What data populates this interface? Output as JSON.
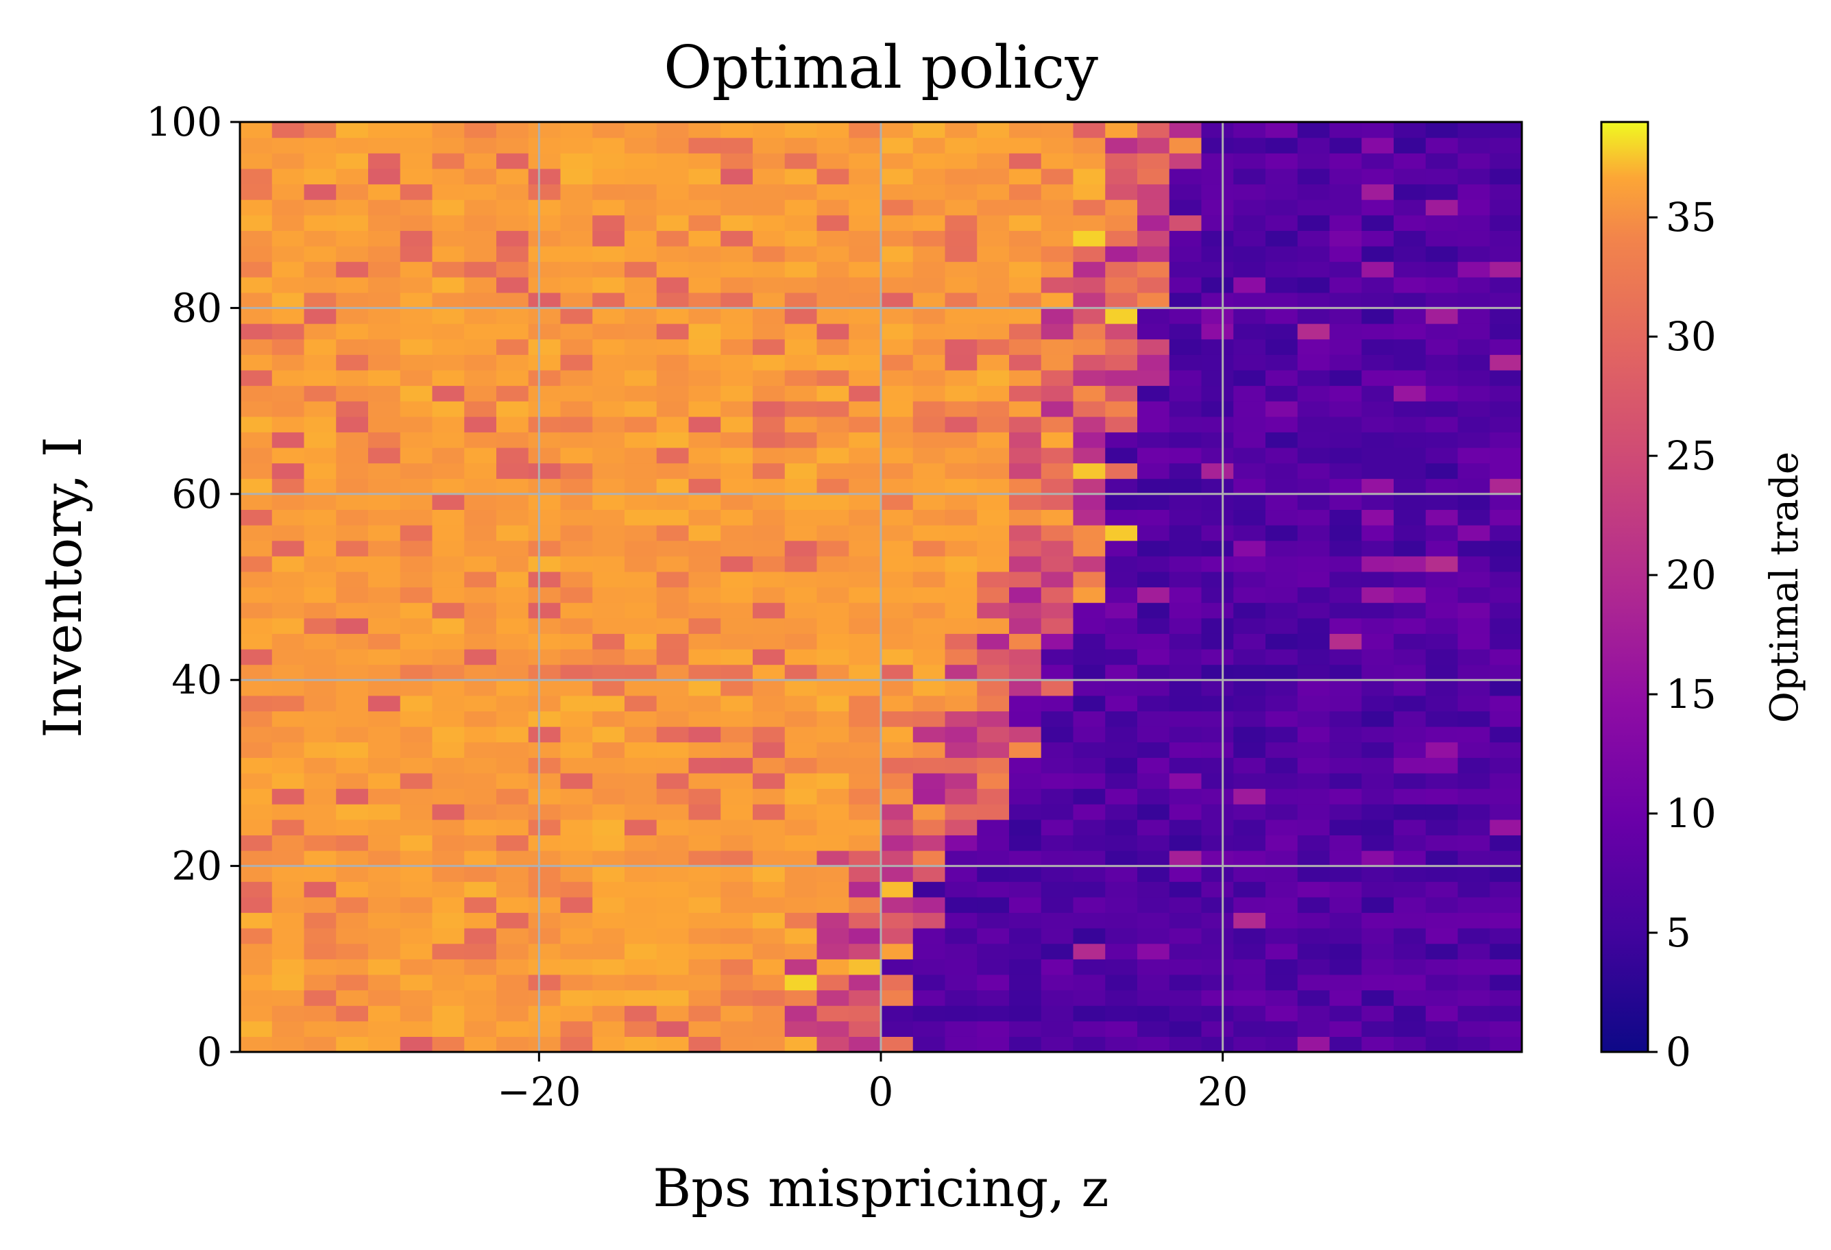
{
  "chart_data": {
    "type": "heatmap",
    "title": "Optimal policy",
    "xlabel": "Bps mispricing, z",
    "ylabel": "Inventory, I",
    "colorbar_label": "Optimal trade",
    "colormap": "plasma",
    "xlim": [
      -37.5,
      37.5
    ],
    "ylim": [
      0,
      100
    ],
    "clim": [
      0,
      39
    ],
    "x_ticks": [
      -20,
      0,
      20
    ],
    "x_tick_labels": [
      "−20",
      "0",
      "20"
    ],
    "y_ticks": [
      0,
      20,
      40,
      60,
      80,
      100
    ],
    "y_tick_labels": [
      "0",
      "20",
      "40",
      "60",
      "80",
      "100"
    ],
    "colorbar_ticks": [
      0,
      5,
      10,
      15,
      20,
      25,
      30,
      35
    ],
    "colorbar_tick_labels": [
      "0",
      "5",
      "10",
      "15",
      "20",
      "25",
      "30",
      "35"
    ],
    "grid": true,
    "grid_color": "#b0b0b0",
    "grid_x": [
      -20,
      0,
      20
    ],
    "grid_y": [
      20,
      40,
      60,
      80
    ],
    "nx": 40,
    "ny": 60,
    "z_min": -37.5,
    "z_max": 37.5,
    "boundary": [
      {
        "I": 0,
        "z": -1.8
      },
      {
        "I": 10,
        "z": -1.5
      },
      {
        "I": 18,
        "z": 0.5
      },
      {
        "I": 22,
        "z": 2.0
      },
      {
        "I": 30,
        "z": 4.0
      },
      {
        "I": 38,
        "z": 6.0
      },
      {
        "I": 45,
        "z": 8.0
      },
      {
        "I": 52,
        "z": 9.5
      },
      {
        "I": 60,
        "z": 11.0
      },
      {
        "I": 70,
        "z": 12.0
      },
      {
        "I": 80,
        "z": 13.5
      },
      {
        "I": 90,
        "z": 14.5
      },
      {
        "I": 100,
        "z": 16.5
      }
    ],
    "high_level": 37,
    "low_level": 4,
    "noise": 6,
    "seed": 7
  }
}
